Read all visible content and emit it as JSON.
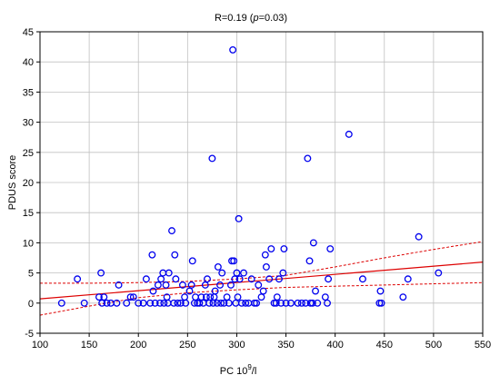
{
  "chart_data": {
    "type": "scatter",
    "title": "R=0.19 (p=0.03)",
    "title_parts": [
      "R=0.19 (",
      "p",
      "=0.03)"
    ],
    "xlabel_parts": [
      "PC 10",
      "9",
      "/l"
    ],
    "ylabel": "PDUS score",
    "xlim": [
      100,
      550
    ],
    "ylim": [
      -5,
      45
    ],
    "x_ticks": [
      100,
      150,
      200,
      250,
      300,
      350,
      400,
      450,
      500,
      550
    ],
    "y_ticks": [
      -5,
      0,
      5,
      10,
      15,
      20,
      25,
      30,
      35,
      40,
      45
    ],
    "grid": true,
    "legend": "none",
    "points": [
      {
        "x": 122,
        "y": 0
      },
      {
        "x": 138,
        "y": 4
      },
      {
        "x": 145,
        "y": 0
      },
      {
        "x": 160,
        "y": 1
      },
      {
        "x": 162,
        "y": 5
      },
      {
        "x": 163,
        "y": 0
      },
      {
        "x": 165,
        "y": 1
      },
      {
        "x": 168,
        "y": 0
      },
      {
        "x": 172,
        "y": 0
      },
      {
        "x": 178,
        "y": 0
      },
      {
        "x": 180,
        "y": 3
      },
      {
        "x": 188,
        "y": 0
      },
      {
        "x": 192,
        "y": 1
      },
      {
        "x": 195,
        "y": 1
      },
      {
        "x": 200,
        "y": 0
      },
      {
        "x": 205,
        "y": 0
      },
      {
        "x": 208,
        "y": 4
      },
      {
        "x": 212,
        "y": 0
      },
      {
        "x": 214,
        "y": 8
      },
      {
        "x": 215,
        "y": 2
      },
      {
        "x": 217,
        "y": 0
      },
      {
        "x": 220,
        "y": 3
      },
      {
        "x": 222,
        "y": 0
      },
      {
        "x": 223,
        "y": 4
      },
      {
        "x": 225,
        "y": 5
      },
      {
        "x": 226,
        "y": 0
      },
      {
        "x": 228,
        "y": 3
      },
      {
        "x": 229,
        "y": 1
      },
      {
        "x": 230,
        "y": 0
      },
      {
        "x": 231,
        "y": 5
      },
      {
        "x": 234,
        "y": 12
      },
      {
        "x": 236,
        "y": 0
      },
      {
        "x": 237,
        "y": 8
      },
      {
        "x": 238,
        "y": 4
      },
      {
        "x": 240,
        "y": 0
      },
      {
        "x": 243,
        "y": 0
      },
      {
        "x": 245,
        "y": 3
      },
      {
        "x": 247,
        "y": 1
      },
      {
        "x": 248,
        "y": 0
      },
      {
        "x": 252,
        "y": 2
      },
      {
        "x": 254,
        "y": 3
      },
      {
        "x": 255,
        "y": 7
      },
      {
        "x": 257,
        "y": 0
      },
      {
        "x": 258,
        "y": 1
      },
      {
        "x": 260,
        "y": 0
      },
      {
        "x": 262,
        "y": 0
      },
      {
        "x": 264,
        "y": 1
      },
      {
        "x": 266,
        "y": 0
      },
      {
        "x": 268,
        "y": 3
      },
      {
        "x": 269,
        "y": 1
      },
      {
        "x": 270,
        "y": 4
      },
      {
        "x": 272,
        "y": 0
      },
      {
        "x": 273,
        "y": 1
      },
      {
        "x": 275,
        "y": 24
      },
      {
        "x": 276,
        "y": 0
      },
      {
        "x": 277,
        "y": 1
      },
      {
        "x": 278,
        "y": 2
      },
      {
        "x": 280,
        "y": 0
      },
      {
        "x": 281,
        "y": 6
      },
      {
        "x": 283,
        "y": 3
      },
      {
        "x": 284,
        "y": 0
      },
      {
        "x": 285,
        "y": 5
      },
      {
        "x": 287,
        "y": 0
      },
      {
        "x": 290,
        "y": 1
      },
      {
        "x": 292,
        "y": 0
      },
      {
        "x": 294,
        "y": 3
      },
      {
        "x": 295,
        "y": 7
      },
      {
        "x": 296,
        "y": 42
      },
      {
        "x": 297,
        "y": 7
      },
      {
        "x": 298,
        "y": 4
      },
      {
        "x": 299,
        "y": 0
      },
      {
        "x": 300,
        "y": 5
      },
      {
        "x": 301,
        "y": 1
      },
      {
        "x": 302,
        "y": 14
      },
      {
        "x": 303,
        "y": 4
      },
      {
        "x": 305,
        "y": 0
      },
      {
        "x": 307,
        "y": 5
      },
      {
        "x": 309,
        "y": 0
      },
      {
        "x": 312,
        "y": 0
      },
      {
        "x": 315,
        "y": 4
      },
      {
        "x": 318,
        "y": 0
      },
      {
        "x": 320,
        "y": 0
      },
      {
        "x": 322,
        "y": 3
      },
      {
        "x": 325,
        "y": 1
      },
      {
        "x": 327,
        "y": 2
      },
      {
        "x": 329,
        "y": 8
      },
      {
        "x": 330,
        "y": 6
      },
      {
        "x": 333,
        "y": 4
      },
      {
        "x": 335,
        "y": 9
      },
      {
        "x": 338,
        "y": 0
      },
      {
        "x": 340,
        "y": 0
      },
      {
        "x": 341,
        "y": 1
      },
      {
        "x": 343,
        "y": 4
      },
      {
        "x": 345,
        "y": 0
      },
      {
        "x": 347,
        "y": 5
      },
      {
        "x": 348,
        "y": 9
      },
      {
        "x": 350,
        "y": 0
      },
      {
        "x": 355,
        "y": 0
      },
      {
        "x": 362,
        "y": 0
      },
      {
        "x": 366,
        "y": 0
      },
      {
        "x": 370,
        "y": 0
      },
      {
        "x": 372,
        "y": 24
      },
      {
        "x": 374,
        "y": 7
      },
      {
        "x": 375,
        "y": 0
      },
      {
        "x": 377,
        "y": 0
      },
      {
        "x": 378,
        "y": 10
      },
      {
        "x": 380,
        "y": 2
      },
      {
        "x": 382,
        "y": 0
      },
      {
        "x": 390,
        "y": 1
      },
      {
        "x": 392,
        "y": 0
      },
      {
        "x": 393,
        "y": 4
      },
      {
        "x": 395,
        "y": 9
      },
      {
        "x": 414,
        "y": 28
      },
      {
        "x": 428,
        "y": 4
      },
      {
        "x": 445,
        "y": 0
      },
      {
        "x": 446,
        "y": 2
      },
      {
        "x": 447,
        "y": 0
      },
      {
        "x": 469,
        "y": 1
      },
      {
        "x": 474,
        "y": 4
      },
      {
        "x": 485,
        "y": 11
      },
      {
        "x": 505,
        "y": 5
      }
    ],
    "regression": {
      "x": [
        100,
        550
      ],
      "y": [
        0.7,
        6.8
      ]
    },
    "confidence_band": {
      "x": [
        100,
        150,
        200,
        250,
        300,
        350,
        400,
        450,
        500,
        550
      ],
      "upper": [
        3.3,
        3.3,
        3.4,
        3.6,
        4.0,
        4.6,
        6.0,
        7.5,
        8.9,
        10.2
      ],
      "lower": [
        -2.0,
        -0.5,
        0.9,
        1.7,
        2.2,
        2.6,
        2.8,
        3.0,
        3.2,
        3.4
      ]
    },
    "colors": {
      "points": "#0000ee",
      "regression": "#dd0000",
      "grid": "#c0c0c0",
      "axis": "#000000"
    }
  }
}
